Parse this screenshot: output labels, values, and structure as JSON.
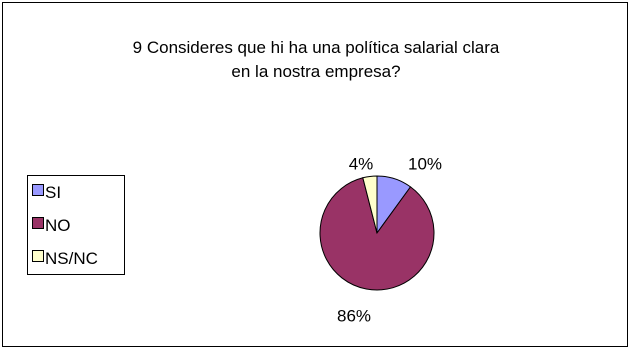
{
  "chart_data": {
    "type": "pie",
    "title_lines": [
      "9 Consideres que hi ha una política salarial clara",
      "en la nostra empresa?"
    ],
    "categories": [
      "SI",
      "NO",
      "NS/NC"
    ],
    "values": [
      10,
      86,
      4
    ],
    "data_labels": [
      "10%",
      "86%",
      "4%"
    ],
    "colors": [
      "#9999FF",
      "#993366",
      "#FFFFCC"
    ],
    "legend_position": "left"
  }
}
